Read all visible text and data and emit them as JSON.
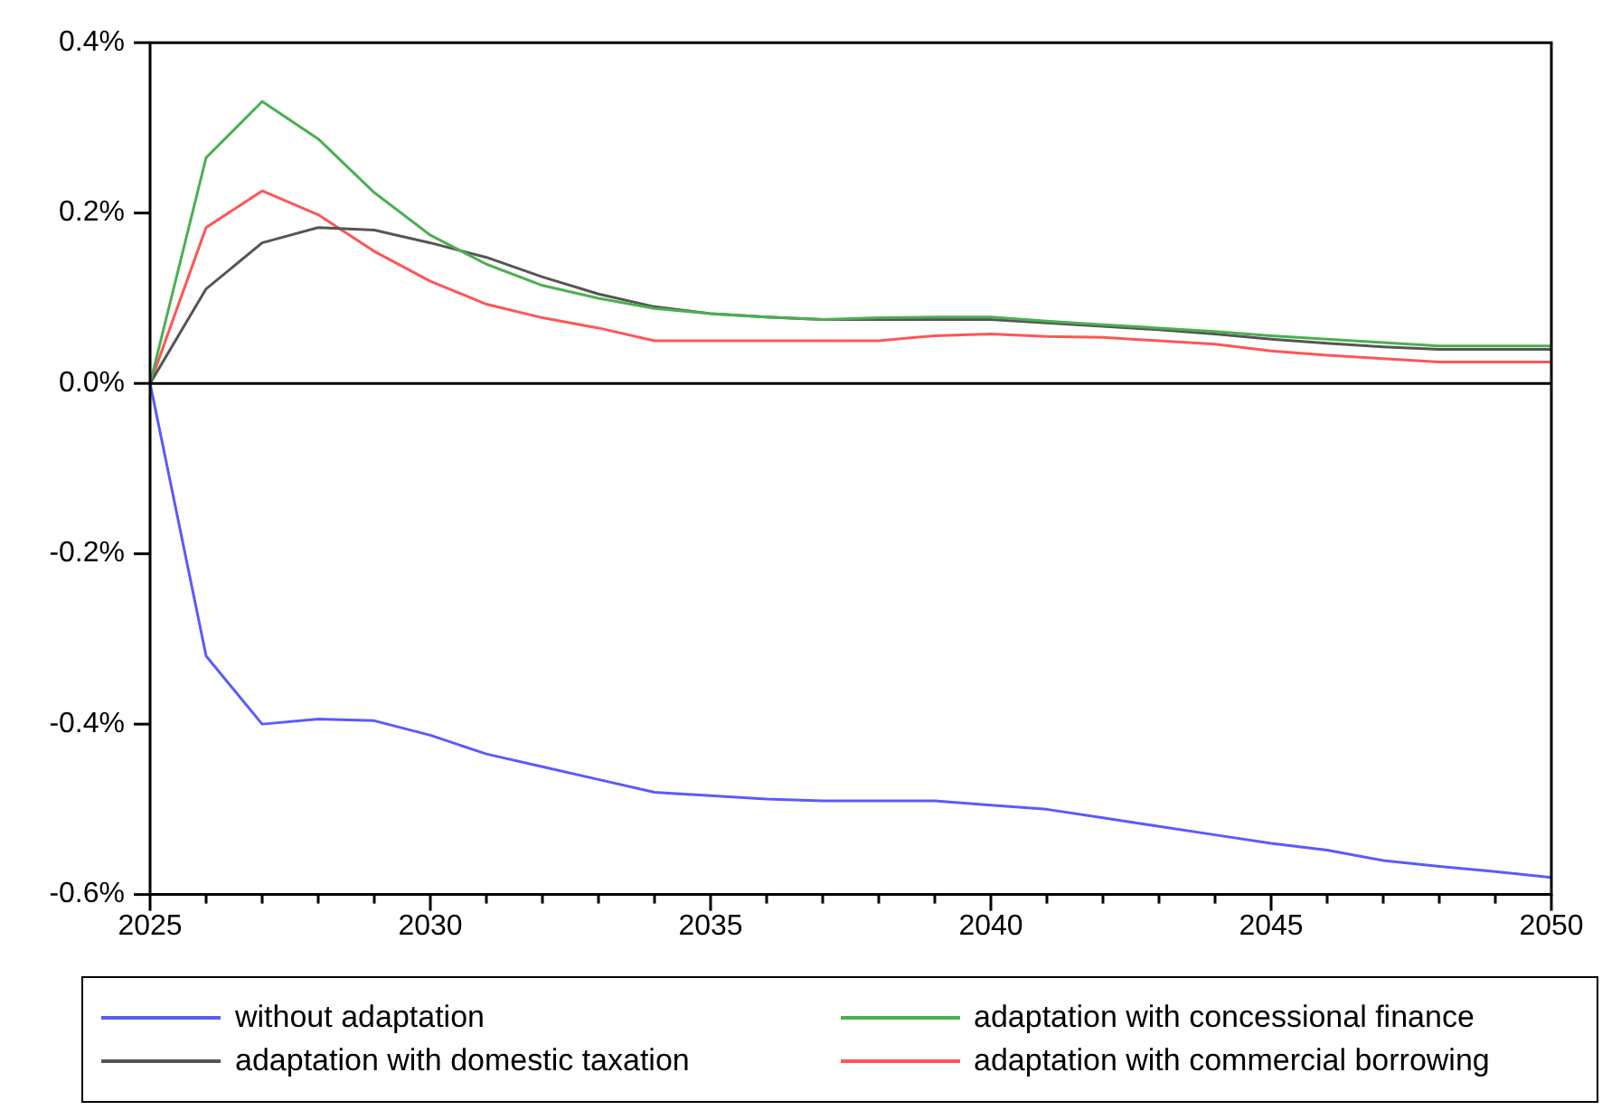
{
  "chart_data": {
    "type": "line",
    "x": [
      2025,
      2026,
      2027,
      2028,
      2029,
      2030,
      2031,
      2032,
      2033,
      2034,
      2035,
      2036,
      2037,
      2038,
      2039,
      2040,
      2041,
      2042,
      2043,
      2044,
      2045,
      2046,
      2047,
      2048,
      2049,
      2050
    ],
    "series": [
      {
        "name": "without adaptation",
        "color": "#5a5aff",
        "values": [
          0,
          -0.32,
          -0.4,
          -0.394,
          -0.396,
          -0.413,
          -0.435,
          -0.45,
          -0.465,
          -0.48,
          -0.484,
          -0.488,
          -0.49,
          -0.49,
          -0.49,
          -0.495,
          -0.5,
          -0.51,
          -0.52,
          -0.53,
          -0.54,
          -0.548,
          -0.56,
          -0.567,
          -0.573,
          -0.58
        ]
      },
      {
        "name": "adaptation with concessional finance",
        "color": "#4caf50",
        "values": [
          0,
          0.265,
          0.331,
          0.287,
          0.224,
          0.174,
          0.14,
          0.115,
          0.1,
          0.088,
          0.082,
          0.078,
          0.075,
          0.077,
          0.078,
          0.078,
          0.073,
          0.069,
          0.065,
          0.061,
          0.056,
          0.052,
          0.048,
          0.044,
          0.044,
          0.044
        ]
      },
      {
        "name": "adaptation with domestic taxation",
        "color": "#555555",
        "values": [
          0,
          0.111,
          0.165,
          0.183,
          0.18,
          0.165,
          0.148,
          0.125,
          0.105,
          0.09,
          0.082,
          0.078,
          0.075,
          0.075,
          0.075,
          0.075,
          0.071,
          0.067,
          0.063,
          0.058,
          0.052,
          0.047,
          0.043,
          0.04,
          0.04,
          0.04
        ]
      },
      {
        "name": "adaptation with commercial borrowing",
        "color": "#ff5555",
        "values": [
          0,
          0.183,
          0.226,
          0.198,
          0.155,
          0.12,
          0.093,
          0.077,
          0.065,
          0.05,
          0.05,
          0.05,
          0.05,
          0.05,
          0.056,
          0.058,
          0.055,
          0.054,
          0.05,
          0.046,
          0.038,
          0.033,
          0.029,
          0.025,
          0.025,
          0.025
        ]
      }
    ],
    "xlim": [
      2025,
      2050
    ],
    "xticks": [
      2025,
      {
        "value": 2026,
        "label": null
      },
      {
        "value": 2027,
        "label": null
      },
      {
        "value": 2028,
        "label": null
      },
      {
        "value": 2029,
        "label": null
      },
      2030,
      {
        "value": 2031,
        "label": null
      },
      {
        "value": 2032,
        "label": null
      },
      {
        "value": 2033,
        "label": null
      },
      {
        "value": 2034,
        "label": null
      },
      2035,
      {
        "value": 2036,
        "label": null
      },
      {
        "value": 2037,
        "label": null
      },
      {
        "value": 2038,
        "label": null
      },
      {
        "value": 2039,
        "label": null
      },
      2040,
      {
        "value": 2041,
        "label": null
      },
      {
        "value": 2042,
        "label": null
      },
      {
        "value": 2043,
        "label": null
      },
      {
        "value": 2044,
        "label": null
      },
      2045,
      {
        "value": 2046,
        "label": null
      },
      {
        "value": 2047,
        "label": null
      },
      {
        "value": 2048,
        "label": null
      },
      {
        "value": 2049,
        "label": null
      },
      2050
    ],
    "ylim": [
      -0.6,
      0.4
    ],
    "yticks": [
      {
        "value": -0.6,
        "label": "-0.6%"
      },
      {
        "value": -0.4,
        "label": "-0.4%"
      },
      {
        "value": -0.2,
        "label": "-0.2%"
      },
      {
        "value": 0,
        "label": "0.0%"
      },
      {
        "value": 0.2,
        "label": "0.2%"
      },
      {
        "value": 0.4,
        "label": "0.4%"
      }
    ],
    "ref_lines": [
      {
        "axis": "y",
        "value": 0,
        "color": "#000000"
      }
    ],
    "grid": false,
    "legend": "bottom",
    "marker": "none",
    "line_style": "solid"
  }
}
